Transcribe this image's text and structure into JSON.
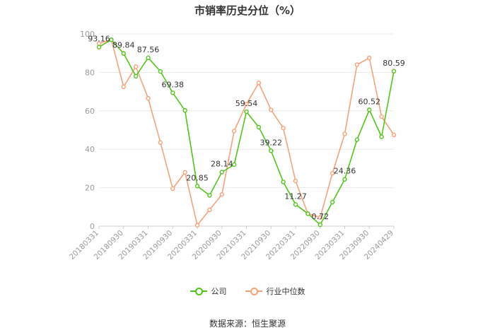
{
  "chart_data": {
    "type": "line",
    "title": "市销率历史分位（%）",
    "ylim": [
      0,
      100
    ],
    "y_ticks": [
      0,
      20,
      40,
      60,
      80,
      100
    ],
    "x_tick_labels": [
      "20180331",
      "20180930",
      "20190331",
      "20190930",
      "20200331",
      "20200930",
      "20210331",
      "20210930",
      "20220331",
      "20220930",
      "20230331",
      "20230930",
      "20240429"
    ],
    "x": [
      "20180331",
      "20180630",
      "20180930",
      "20181231",
      "20190331",
      "20190630",
      "20190930",
      "20191231",
      "20200331",
      "20200630",
      "20200930",
      "20201231",
      "20210331",
      "20210630",
      "20210930",
      "20211231",
      "20220331",
      "20220630",
      "20220930",
      "20221231",
      "20230331",
      "20230630",
      "20230930",
      "20231231",
      "20240429"
    ],
    "series": [
      {
        "name": "公司",
        "color": "#52c41a",
        "values": [
          93.16,
          97.0,
          89.84,
          78.0,
          87.56,
          80.5,
          69.38,
          60.2,
          20.85,
          16.0,
          28.14,
          32.0,
          59.54,
          51.5,
          39.22,
          23.0,
          11.27,
          6.5,
          0.72,
          12.5,
          24.36,
          45.0,
          60.52,
          46.5,
          80.59
        ],
        "labels": {
          "0": "93.16",
          "2": "89.84",
          "4": "87.56",
          "6": "69.38",
          "8": "20.85",
          "10": "28.14",
          "12": "59.54",
          "14": "39.22",
          "16": "11.27",
          "18": "0.72",
          "20": "24.36",
          "22": "60.52",
          "24": "80.59"
        }
      },
      {
        "name": "行业中位数",
        "color": "#f4a27a",
        "values": [
          95.0,
          97.0,
          72.5,
          83.0,
          66.5,
          43.5,
          19.5,
          28.0,
          0.5,
          8.5,
          16.5,
          49.5,
          63.5,
          74.5,
          60.5,
          51.0,
          23.5,
          6.5,
          4.5,
          27.5,
          48.0,
          84.0,
          87.5,
          57.0,
          47.5
        ]
      }
    ],
    "legend_position": "bottom",
    "grid": true,
    "source_text": "数据来源：恒生聚源"
  }
}
